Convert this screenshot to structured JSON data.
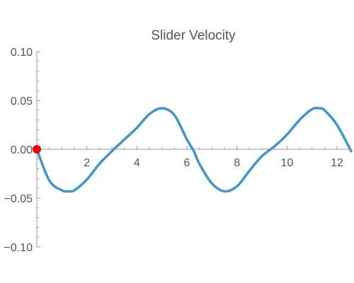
{
  "chart_data": {
    "type": "line",
    "title": "Slider Velocity",
    "xlabel": "",
    "ylabel": "",
    "xlim": [
      0,
      12.566
    ],
    "ylim": [
      -0.1,
      0.1
    ],
    "x_ticks": [
      2,
      4,
      6,
      8,
      10,
      12
    ],
    "x_tick_labels": [
      "2",
      "4",
      "6",
      "8",
      "10",
      "12"
    ],
    "y_ticks": [
      0.1,
      0.05,
      0.0,
      -0.05,
      -0.1
    ],
    "y_tick_labels": [
      "0.10",
      "0.05",
      "0.00",
      "−0.05",
      "−0.10"
    ],
    "series": [
      {
        "x": [
          0,
          0.5,
          1.0,
          1.25,
          1.5,
          2.0,
          2.5,
          3.0,
          3.5,
          4.0,
          4.5,
          5.0,
          5.5,
          6.0,
          6.28,
          6.5,
          7.0,
          7.5,
          8.0,
          8.5,
          9.0,
          9.5,
          10.0,
          10.5,
          11.0,
          11.3,
          11.5,
          12.0,
          12.566
        ],
        "y": [
          0.0,
          -0.032,
          -0.042,
          -0.043,
          -0.042,
          -0.031,
          -0.015,
          -0.002,
          0.01,
          0.022,
          0.036,
          0.042,
          0.035,
          0.01,
          -0.002,
          -0.015,
          -0.035,
          -0.043,
          -0.038,
          -0.022,
          -0.007,
          0.003,
          0.015,
          0.03,
          0.041,
          0.042,
          0.04,
          0.025,
          -0.002
        ],
        "color": "#4095c9"
      }
    ],
    "marker": {
      "x": 0,
      "y": 0,
      "color": "#e8000e"
    },
    "grid": false
  }
}
